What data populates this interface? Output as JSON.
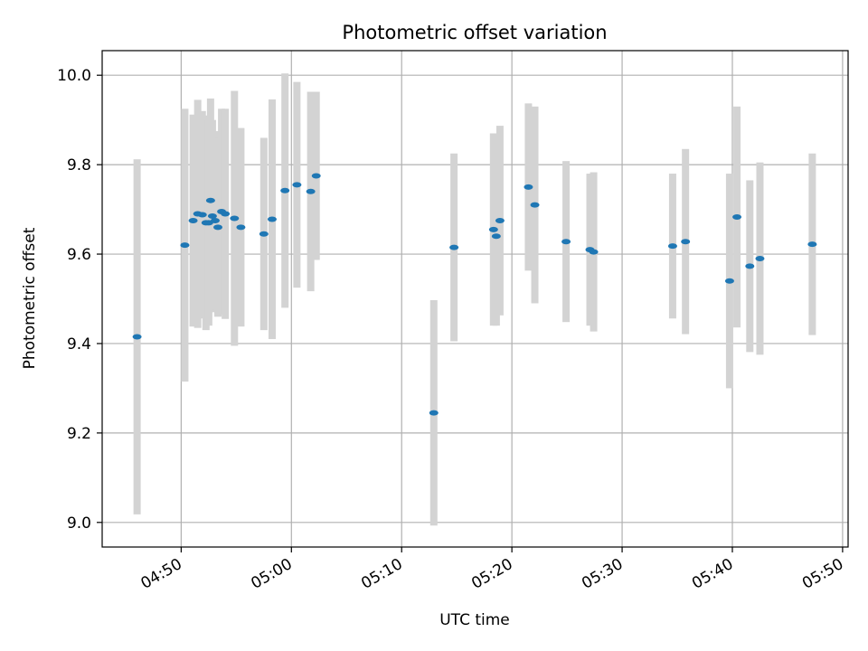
{
  "chart_data": {
    "type": "scatter",
    "title": "Photometric offset variation",
    "xlabel": "UTC time",
    "ylabel": "Photometric offset",
    "x_axis_format": "HH:MM",
    "xlim": [
      "04:42:50",
      "05:50:30"
    ],
    "ylim": [
      8.945,
      10.055
    ],
    "x_ticks": [
      "04:50",
      "05:00",
      "05:10",
      "05:20",
      "05:30",
      "05:40",
      "05:50"
    ],
    "y_ticks": [
      9.0,
      9.2,
      9.4,
      9.6,
      9.8,
      10.0
    ],
    "grid": true,
    "colors": {
      "points": "#1f77b4",
      "errorbars": "#d3d3d3",
      "grid": "#b0b0b0"
    },
    "points": [
      {
        "x": "04:46:00",
        "y": 9.415,
        "err": 0.397
      },
      {
        "x": "04:50:20",
        "y": 9.62,
        "err": 0.305
      },
      {
        "x": "04:51:05",
        "y": 9.675,
        "err": 0.237
      },
      {
        "x": "04:51:30",
        "y": 9.69,
        "err": 0.255
      },
      {
        "x": "04:51:55",
        "y": 9.688,
        "err": 0.232
      },
      {
        "x": "04:52:15",
        "y": 9.67,
        "err": 0.24
      },
      {
        "x": "04:52:30",
        "y": 9.67,
        "err": 0.23
      },
      {
        "x": "04:52:40",
        "y": 9.72,
        "err": 0.228
      },
      {
        "x": "04:52:50",
        "y": 9.685,
        "err": 0.215
      },
      {
        "x": "04:53:05",
        "y": 9.675,
        "err": 0.2
      },
      {
        "x": "04:53:20",
        "y": 9.66,
        "err": 0.2
      },
      {
        "x": "04:53:40",
        "y": 9.695,
        "err": 0.23
      },
      {
        "x": "04:54:00",
        "y": 9.69,
        "err": 0.235
      },
      {
        "x": "04:54:50",
        "y": 9.68,
        "err": 0.285
      },
      {
        "x": "04:55:25",
        "y": 9.66,
        "err": 0.222
      },
      {
        "x": "04:57:30",
        "y": 9.645,
        "err": 0.215
      },
      {
        "x": "04:58:15",
        "y": 9.678,
        "err": 0.268
      },
      {
        "x": "04:59:25",
        "y": 9.742,
        "err": 0.262
      },
      {
        "x": "05:00:30",
        "y": 9.755,
        "err": 0.23
      },
      {
        "x": "05:01:45",
        "y": 9.74,
        "err": 0.223
      },
      {
        "x": "05:02:15",
        "y": 9.775,
        "err": 0.188
      },
      {
        "x": "05:12:55",
        "y": 9.245,
        "err": 0.252
      },
      {
        "x": "05:14:45",
        "y": 9.615,
        "err": 0.21
      },
      {
        "x": "05:18:20",
        "y": 9.655,
        "err": 0.215
      },
      {
        "x": "05:18:35",
        "y": 9.64,
        "err": 0.2
      },
      {
        "x": "05:18:55",
        "y": 9.675,
        "err": 0.212
      },
      {
        "x": "05:21:30",
        "y": 9.75,
        "err": 0.187
      },
      {
        "x": "05:22:05",
        "y": 9.71,
        "err": 0.22
      },
      {
        "x": "05:24:55",
        "y": 9.628,
        "err": 0.18
      },
      {
        "x": "05:27:05",
        "y": 9.61,
        "err": 0.17
      },
      {
        "x": "05:27:25",
        "y": 9.605,
        "err": 0.178
      },
      {
        "x": "05:34:35",
        "y": 9.618,
        "err": 0.162
      },
      {
        "x": "05:35:45",
        "y": 9.628,
        "err": 0.207
      },
      {
        "x": "05:39:45",
        "y": 9.54,
        "err": 0.24
      },
      {
        "x": "05:40:25",
        "y": 9.683,
        "err": 0.247
      },
      {
        "x": "05:41:35",
        "y": 9.573,
        "err": 0.192
      },
      {
        "x": "05:42:30",
        "y": 9.59,
        "err": 0.215
      },
      {
        "x": "05:47:15",
        "y": 9.622,
        "err": 0.203
      }
    ]
  }
}
